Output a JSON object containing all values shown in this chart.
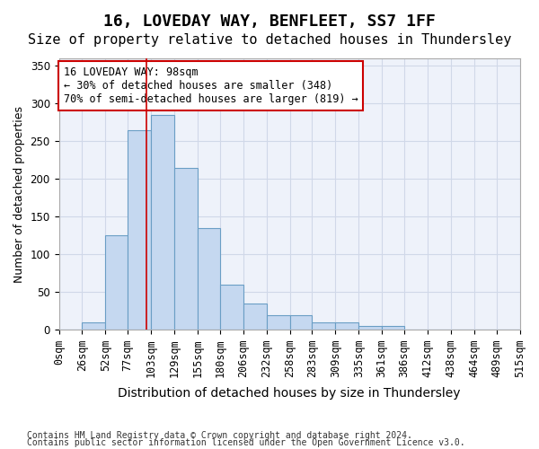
{
  "title": "16, LOVEDAY WAY, BENFLEET, SS7 1FF",
  "subtitle": "Size of property relative to detached houses in Thundersley",
  "xlabel": "Distribution of detached houses by size in Thundersley",
  "ylabel": "Number of detached properties",
  "footnote1": "Contains HM Land Registry data © Crown copyright and database right 2024.",
  "footnote2": "Contains public sector information licensed under the Open Government Licence v3.0.",
  "bar_edges": [
    0,
    26,
    52,
    77,
    103,
    129,
    155,
    180,
    206,
    232,
    258,
    283,
    309,
    335,
    361,
    386,
    412,
    438,
    464,
    489,
    515
  ],
  "bar_heights": [
    0,
    10,
    125,
    265,
    285,
    215,
    135,
    60,
    35,
    20,
    20,
    10,
    10,
    5,
    5,
    0,
    0,
    0,
    0,
    0
  ],
  "bar_color": "#c5d8f0",
  "bar_edge_color": "#6a9ec5",
  "bar_linewidth": 0.8,
  "grid_color": "#d0d8e8",
  "bg_color": "#eef2fa",
  "red_line_x": 98,
  "red_line_color": "#cc0000",
  "annotation_text": "16 LOVEDAY WAY: 98sqm\n← 30% of detached houses are smaller (348)\n70% of semi-detached houses are larger (819) →",
  "annotation_box_color": "#ffffff",
  "annotation_box_edge": "#cc0000",
  "ylim": [
    0,
    360
  ],
  "yticks": [
    0,
    50,
    100,
    150,
    200,
    250,
    300,
    350
  ],
  "title_fontsize": 13,
  "subtitle_fontsize": 11,
  "xlabel_fontsize": 10,
  "ylabel_fontsize": 9,
  "tick_fontsize": 8.5,
  "annotation_fontsize": 8.5
}
